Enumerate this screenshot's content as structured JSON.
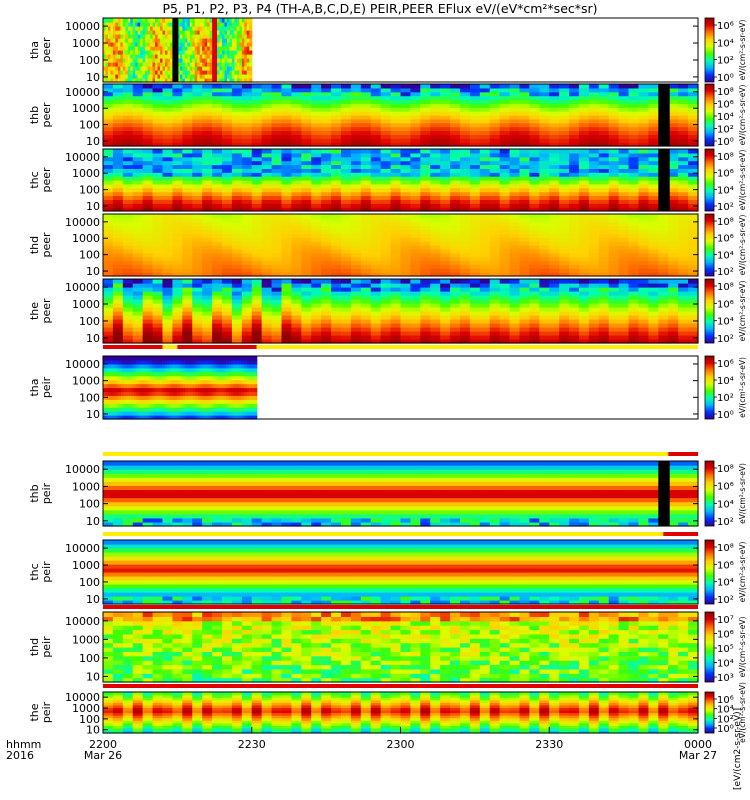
{
  "title": "P5, P1, P2, P3, P4 (TH-A,B,C,D,E) PEIR,PEER EFlux eV/(eV*cm²*sec*sr)",
  "time_axis": {
    "row_label": "hhmm",
    "year": "2016",
    "ticks": [
      {
        "t": 0,
        "label": "2200",
        "sub": "Mar 26"
      },
      {
        "t": 30,
        "label": "2230",
        "sub": ""
      },
      {
        "t": 60,
        "label": "2300",
        "sub": ""
      },
      {
        "t": 90,
        "label": "2330",
        "sub": ""
      },
      {
        "t": 120,
        "label": "0000",
        "sub": "Mar 27"
      }
    ]
  },
  "colorbar_label": "[eV/(cm2-s-sr-eV)]",
  "colors": {
    "palette": [
      "#30009a",
      "#0032ff",
      "#00b4ff",
      "#00ffb0",
      "#40ff00",
      "#d8ff00",
      "#ffd000",
      "#ff7000",
      "#e00000",
      "#900000"
    ],
    "flag_red": "#e00000",
    "flag_yellow": "#ffee00"
  },
  "chart_data": {
    "type": "heatmap",
    "x_range_minutes": [
      0,
      120
    ],
    "panels": [
      {
        "probe": "tha",
        "species": "peer",
        "ylabel": "tha\npeer",
        "ylim": [
          5,
          30000
        ],
        "yticks": [
          "10000",
          "1000",
          "100",
          "10"
        ],
        "data_end_min": 30,
        "cb_labels": [
          "10⁶",
          "10⁴",
          "10²",
          "10⁰"
        ],
        "side_label": "eV/(cm²-s-sr-eV)",
        "flag": "",
        "gaps": [
          [
            14.0,
            15.2
          ]
        ],
        "spikes": [
          [
            22.0,
            23.0
          ]
        ],
        "profile": "tha_peer"
      },
      {
        "probe": "thb",
        "species": "peer",
        "ylabel": "thb\npeer",
        "ylim": [
          5,
          30000
        ],
        "yticks": [
          "10000",
          "1000",
          "100",
          "10"
        ],
        "data_end_min": 120,
        "cb_labels": [
          "10⁸",
          "10⁶",
          "10⁴",
          "10²",
          "10⁰"
        ],
        "side_label": "eV/(cm²-s-sr-eV)",
        "flag": "",
        "gaps": [
          [
            112.0,
            114.3
          ]
        ],
        "spikes": [],
        "profile": "thb_peer"
      },
      {
        "probe": "thc",
        "species": "peer",
        "ylabel": "thc\npeer",
        "ylim": [
          5,
          30000
        ],
        "yticks": [
          "10000",
          "1000",
          "100",
          "10"
        ],
        "data_end_min": 120,
        "cb_labels": [
          "10⁸",
          "10⁶",
          "10⁴",
          "10²"
        ],
        "side_label": "eV/(cm²-s-sr-eV)",
        "flag": "",
        "gaps": [
          [
            112.0,
            114.3
          ]
        ],
        "spikes": [],
        "profile": "thc_peer"
      },
      {
        "probe": "thd",
        "species": "peer",
        "ylabel": "thd\npeer",
        "ylim": [
          5,
          30000
        ],
        "yticks": [
          "10000",
          "1000",
          "100",
          "10"
        ],
        "data_end_min": 120,
        "cb_labels": [
          "10⁸",
          "10⁶",
          "10⁴",
          "10²"
        ],
        "side_label": "eV/(cm²-s-sr-eV)",
        "flag": "",
        "gaps": [],
        "spikes": [],
        "profile": "thd_peer"
      },
      {
        "probe": "the",
        "species": "peer",
        "ylabel": "the\npeer",
        "ylim": [
          5,
          30000
        ],
        "yticks": [
          "10000",
          "1000",
          "100",
          "10"
        ],
        "data_end_min": 120,
        "cb_labels": [
          "10⁸",
          "10⁶",
          "10⁴",
          "10²"
        ],
        "side_label": "eV/(cm²-s-sr-eV)",
        "flag": "",
        "gaps": [],
        "spikes": [],
        "profile": "the_peer"
      },
      {
        "probe": "tha",
        "species": "peir",
        "ylabel": "tha\npeir",
        "ylim": [
          5,
          30000
        ],
        "yticks": [
          "10000",
          "1000",
          "100",
          "10"
        ],
        "data_end_min": 31,
        "cb_labels": [
          "10⁶",
          "10⁴",
          "10²",
          "10⁰"
        ],
        "side_label": "eV/(cm²-s-sr-eV)",
        "flag": "mixed_a",
        "gaps": [],
        "spikes": [],
        "profile": "tha_peir"
      },
      {
        "probe": "thb",
        "species": "peir",
        "ylabel": "thb\npeir",
        "ylim": [
          5,
          30000
        ],
        "yticks": [
          "10000",
          "1000",
          "100",
          "10"
        ],
        "data_end_min": 120,
        "cb_labels": [
          "10⁸",
          "10⁶",
          "10⁴",
          "10²"
        ],
        "side_label": "eV/(cm²-s-sr-eV)",
        "flag": "mixed_b",
        "gaps": [
          [
            112.0,
            114.3
          ]
        ],
        "spikes": [],
        "profile": "thb_peir"
      },
      {
        "probe": "thc",
        "species": "peir",
        "ylabel": "thc\npeir",
        "ylim": [
          5,
          30000
        ],
        "yticks": [
          "10000",
          "1000",
          "100",
          "10"
        ],
        "data_end_min": 120,
        "cb_labels": [
          "10⁸",
          "10⁶",
          "10⁴",
          "10²"
        ],
        "side_label": "eV/(cm²-s-sr-eV)",
        "flag": "mixed_c",
        "gaps": [],
        "spikes": [],
        "profile": "thc_peir"
      },
      {
        "probe": "thd",
        "species": "peir",
        "ylabel": "thd\npeir",
        "ylim": [
          5,
          30000
        ],
        "yticks": [
          "10000",
          "1000",
          "100",
          "10"
        ],
        "data_end_min": 120,
        "cb_labels": [
          "10⁷",
          "10⁶",
          "10⁵",
          "10⁴",
          "10³"
        ],
        "side_label": "eV/(cm²-s-sr-eV)",
        "flag": "red",
        "gaps": [],
        "spikes": [],
        "profile": "thd_peir"
      },
      {
        "probe": "the",
        "species": "peir",
        "ylabel": "the\npeir",
        "ylim": [
          5,
          30000
        ],
        "yticks": [
          "10000",
          "1000",
          "100",
          "10"
        ],
        "data_end_min": 120,
        "cb_labels": [
          "10⁶",
          "10⁴",
          "10²",
          "10⁰"
        ],
        "side_label": "eV/(cm²-s-sr-eV)",
        "flag": "red",
        "gaps": [],
        "spikes": [],
        "profile": "the_peir"
      }
    ]
  }
}
